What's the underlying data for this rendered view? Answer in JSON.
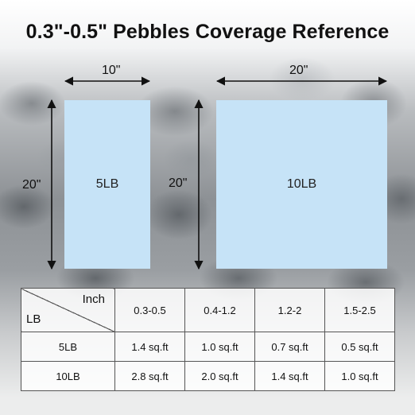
{
  "title": "0.3\"-0.5\" Pebbles Coverage Reference",
  "diagrams": [
    {
      "label": "5LB",
      "width_label": "10\"",
      "height_label": "20\""
    },
    {
      "label": "10LB",
      "width_label": "20\"",
      "height_label": "20\""
    }
  ],
  "colors": {
    "box_fill": "#c6e3f7",
    "table_border": "#555555"
  },
  "table": {
    "corner_top": "Inch",
    "corner_bottom": "LB",
    "columns": [
      "0.3-0.5",
      "0.4-1.2",
      "1.2-2",
      "1.5-2.5"
    ],
    "rows": [
      {
        "label": "5LB",
        "values": [
          "1.4 sq.ft",
          "1.0 sq.ft",
          "0.7 sq.ft",
          "0.5 sq.ft"
        ]
      },
      {
        "label": "10LB",
        "values": [
          "2.8 sq.ft",
          "2.0 sq.ft",
          "1.4 sq.ft",
          "1.0 sq.ft"
        ]
      }
    ]
  }
}
